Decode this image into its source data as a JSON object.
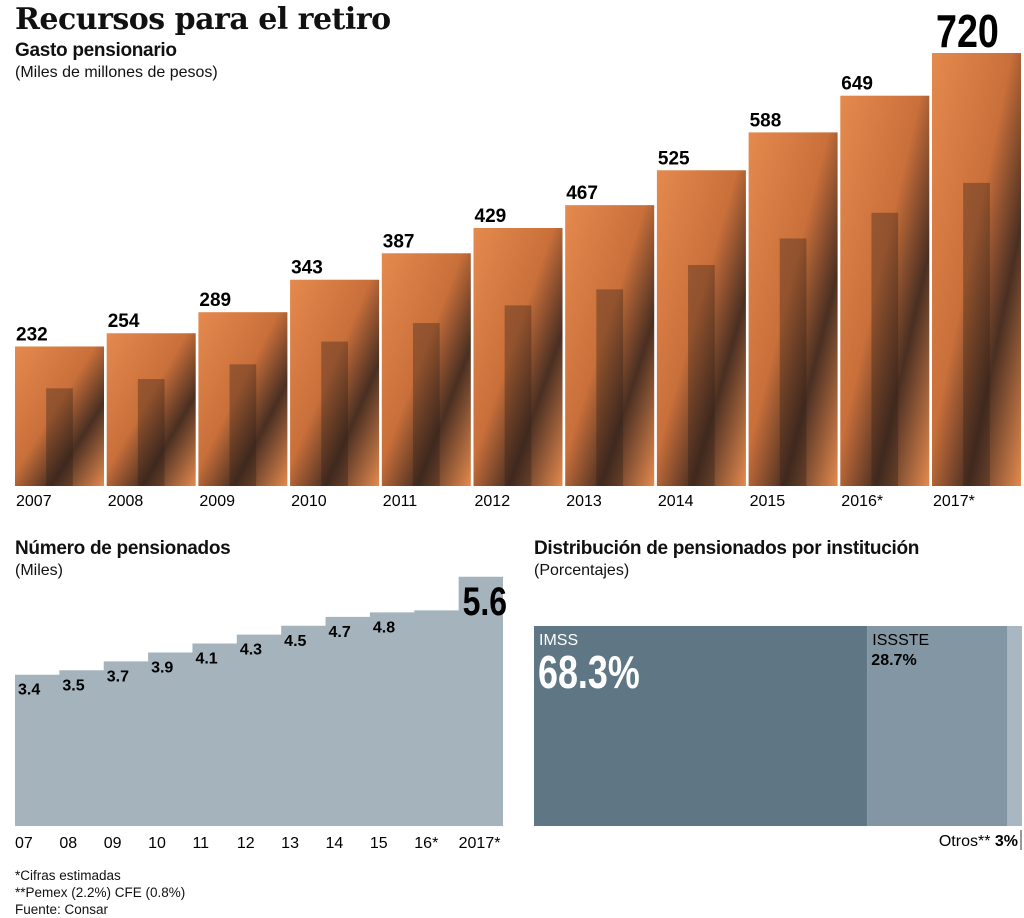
{
  "title": "Recursos para el retiro",
  "chart_data": [
    {
      "type": "bar",
      "title": "Gasto pensionario",
      "subtitle": "(Miles de millones de pesos)",
      "categories": [
        "2007",
        "2008",
        "2009",
        "2010",
        "2011",
        "2012",
        "2013",
        "2014",
        "2015",
        "2016*",
        "2017*"
      ],
      "values": [
        232,
        254,
        289,
        343,
        387,
        429,
        467,
        525,
        588,
        649,
        720
      ],
      "ylim": [
        0,
        720
      ],
      "colors": {
        "bar": "#E58A4E",
        "dark": "#2a1d16"
      }
    },
    {
      "type": "area",
      "title": "Número de pensionados",
      "subtitle": "(Miles)",
      "categories": [
        "07",
        "08",
        "09",
        "10",
        "11",
        "12",
        "13",
        "14",
        "15",
        "16*",
        "2017*"
      ],
      "values": [
        3.4,
        3.5,
        3.7,
        3.9,
        4.1,
        4.3,
        4.5,
        4.7,
        4.8,
        null,
        5.6
      ],
      "labels": [
        "3.4",
        "3.5",
        "3.7",
        "3.9",
        "4.1",
        "4.3",
        "4.5",
        "4.7",
        "4.8",
        "",
        "5.6"
      ],
      "ylim": [
        0,
        5.6
      ],
      "colors": {
        "fill": "#A5B3BD"
      }
    },
    {
      "type": "bar",
      "title": "Distribución de pensionados por institución",
      "subtitle": "(Porcentajes)",
      "segments": [
        {
          "name": "IMSS",
          "value": 68.3,
          "label": "68.3%",
          "color": "#5F7684"
        },
        {
          "name": "ISSSTE",
          "value": 28.7,
          "label": "28.7%",
          "color": "#8296A3"
        },
        {
          "name": "Otros**",
          "value": 3,
          "label": "3%",
          "color": "#A8B7C2"
        }
      ]
    }
  ],
  "notes": [
    "*Cifras estimadas",
    "**Pemex (2.2%) CFE (0.8%)",
    "Fuente: Consar"
  ]
}
